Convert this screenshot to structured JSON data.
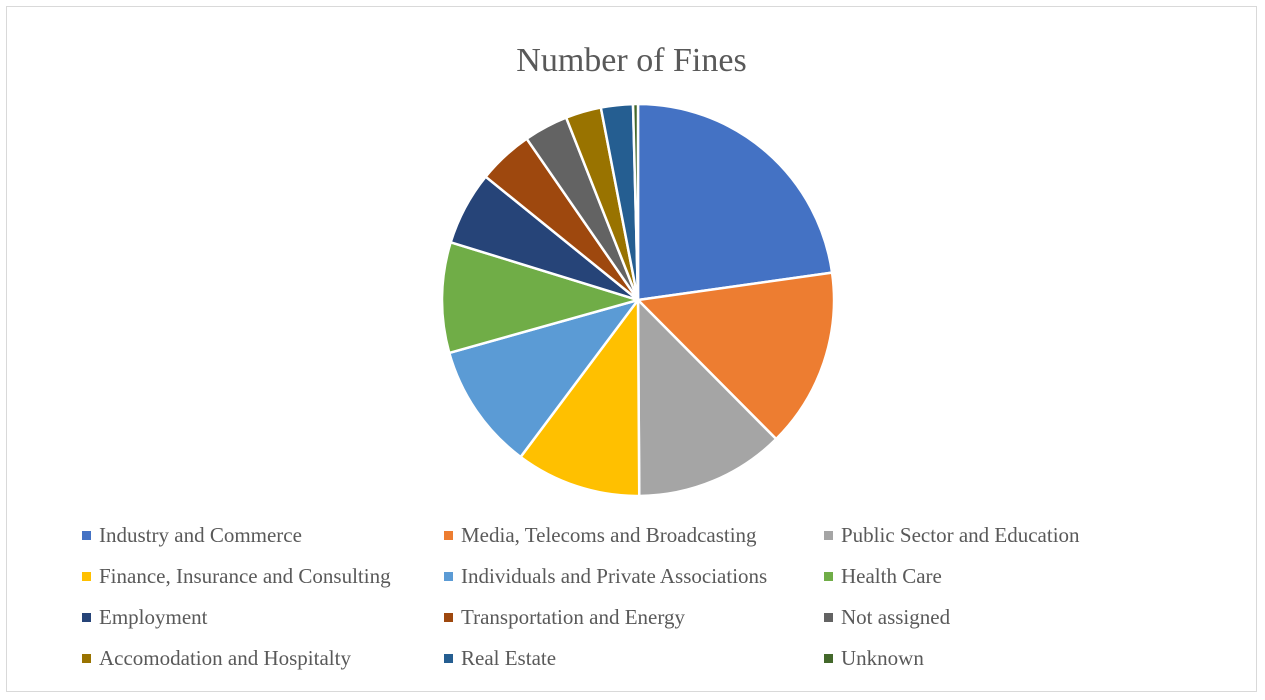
{
  "chart_data": {
    "type": "pie",
    "title": "Number of Fines",
    "categories": [
      "Industry and Commerce",
      "Media, Telecoms and Broadcasting",
      "Public Sector and Education",
      "Finance, Insurance and Consulting",
      "Individuals and Private Associations",
      "Health Care",
      "Employment",
      "Transportation and Energy",
      "Not assigned",
      "Accomodation and Hospitalty",
      "Real Estate",
      "Unknown"
    ],
    "values": [
      22.5,
      14.6,
      12.2,
      10.2,
      10.3,
      9.0,
      6.0,
      4.5,
      3.6,
      2.9,
      2.6,
      0.4
    ],
    "unit": "percent of fines (estimated)",
    "colors": [
      "#4472C4",
      "#ED7D31",
      "#A5A5A5",
      "#FFC000",
      "#5B9BD5",
      "#70AD47",
      "#264478",
      "#9E480E",
      "#636363",
      "#997300",
      "#255E91",
      "#43682B"
    ],
    "legend_position": "bottom"
  }
}
